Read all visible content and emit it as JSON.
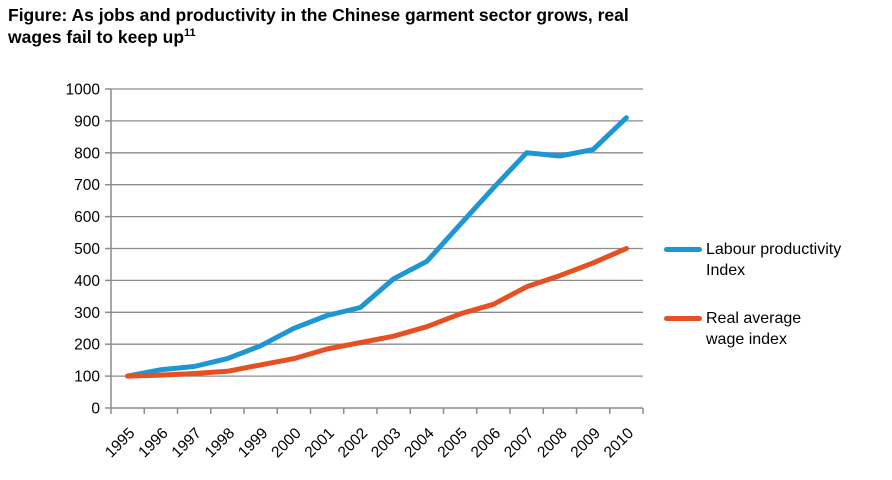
{
  "figure": {
    "title_line1": "Figure: As jobs and productivity in the Chinese garment sector grows, real",
    "title_line2": "wages fail to keep up",
    "footnote_marker": "11"
  },
  "chart_data": {
    "type": "line",
    "title": "As jobs and productivity in the Chinese garment sector grows, real wages fail to keep up",
    "categories": [
      "1995",
      "1996",
      "1997",
      "1998",
      "1999",
      "2000",
      "2001",
      "2002",
      "2003",
      "2004",
      "2005",
      "2006",
      "2007",
      "2008",
      "2009",
      "2010"
    ],
    "series": [
      {
        "name": "Labour productivity Index",
        "color": "#1f96d4",
        "values": [
          100,
          120,
          130,
          155,
          195,
          250,
          290,
          315,
          405,
          460,
          575,
          690,
          800,
          790,
          810,
          910
        ]
      },
      {
        "name": "Real average wage index",
        "color": "#e65023",
        "values": [
          100,
          103,
          108,
          115,
          135,
          155,
          185,
          205,
          225,
          255,
          295,
          325,
          380,
          415,
          455,
          500
        ]
      }
    ],
    "xlabel": "",
    "ylabel": "",
    "ylim": [
      0,
      1000
    ],
    "ytick_step": 100,
    "grid": true,
    "grid_color": "#8c8c8c",
    "legend_position": "right",
    "x_label_rotation": -45
  },
  "legend": {
    "items": [
      {
        "label_line1": "Labour productivity",
        "label_line2": "Index",
        "color": "#1f96d4"
      },
      {
        "label_line1": "Real average",
        "label_line2": "wage index",
        "color": "#e65023"
      }
    ]
  }
}
